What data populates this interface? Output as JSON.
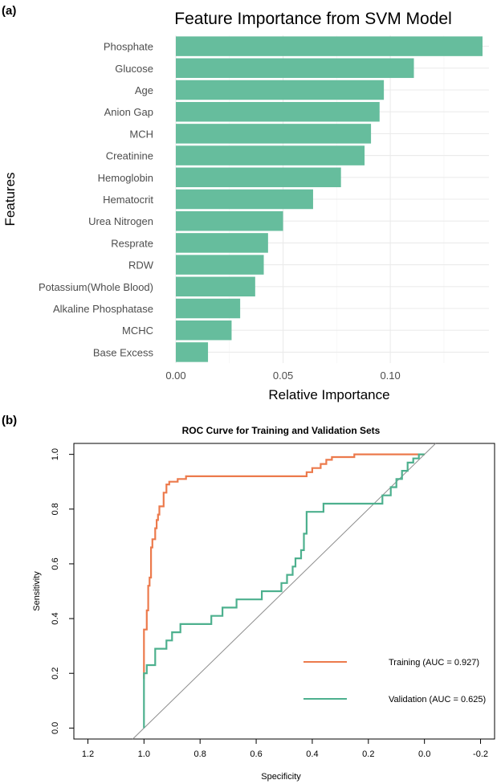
{
  "panels": {
    "a": "(a)",
    "b": "(b)"
  },
  "chart_data": [
    {
      "type": "bar",
      "orientation": "horizontal",
      "title": "Feature Importance from SVM Model",
      "xlabel": "Relative Importance",
      "ylabel": "Features",
      "categories": [
        "Phosphate",
        "Glucose",
        "Age",
        "Anion Gap",
        "MCH",
        "Creatinine",
        "Hemoglobin",
        "Hematocrit",
        "Urea Nitrogen",
        "Resprate",
        "RDW",
        "Potassium(Whole Blood)",
        "Alkaline Phosphatase",
        "MCHC",
        "Base Excess"
      ],
      "values": [
        0.143,
        0.111,
        0.097,
        0.095,
        0.091,
        0.088,
        0.077,
        0.064,
        0.05,
        0.043,
        0.041,
        0.037,
        0.03,
        0.026,
        0.015
      ],
      "xlim": [
        0,
        0.146
      ],
      "xticks": [
        0,
        0.05,
        0.1
      ],
      "xtick_labels": [
        "0.00",
        "0.05",
        "0.10"
      ],
      "bar_color": "#66bd9d",
      "grid": true
    },
    {
      "type": "line",
      "title": "ROC Curve for Training and Validation Sets",
      "xlabel": "Specificity",
      "ylabel": "Sensitivity",
      "xlim": [
        1.25,
        -0.25
      ],
      "ylim": [
        -0.04,
        1.04
      ],
      "xticks": [
        1.2,
        1.0,
        0.8,
        0.6,
        0.4,
        0.2,
        0.0,
        -0.2
      ],
      "xtick_labels": [
        "1.2",
        "1.0",
        "0.8",
        "0.6",
        "0.4",
        "0.2",
        "0.0",
        "-0.2"
      ],
      "yticks": [
        0.0,
        0.2,
        0.4,
        0.6,
        0.8,
        1.0
      ],
      "ytick_labels": [
        "0.0",
        "0.2",
        "0.4",
        "0.6",
        "0.8",
        "1.0"
      ],
      "legend_position": "bottom-right",
      "series": [
        {
          "name": "Training (AUC = 0.927)",
          "color": "#ec7a4c",
          "x": [
            1.0,
            1.0,
            0.99,
            0.99,
            0.985,
            0.985,
            0.98,
            0.98,
            0.975,
            0.975,
            0.97,
            0.97,
            0.96,
            0.96,
            0.955,
            0.955,
            0.95,
            0.95,
            0.945,
            0.945,
            0.93,
            0.93,
            0.92,
            0.92,
            0.91,
            0.91,
            0.88,
            0.88,
            0.85,
            0.85,
            0.42,
            0.42,
            0.4,
            0.4,
            0.37,
            0.37,
            0.35,
            0.35,
            0.33,
            0.33,
            0.25,
            0.25,
            0.0
          ],
          "y": [
            0.18,
            0.36,
            0.36,
            0.43,
            0.43,
            0.52,
            0.52,
            0.55,
            0.55,
            0.66,
            0.66,
            0.69,
            0.69,
            0.73,
            0.73,
            0.76,
            0.76,
            0.78,
            0.78,
            0.81,
            0.81,
            0.86,
            0.86,
            0.89,
            0.89,
            0.9,
            0.9,
            0.91,
            0.91,
            0.92,
            0.92,
            0.935,
            0.935,
            0.95,
            0.95,
            0.965,
            0.965,
            0.98,
            0.98,
            0.99,
            0.99,
            1.0,
            1.0
          ]
        },
        {
          "name": "Validation (AUC = 0.625)",
          "color": "#4db08e",
          "x": [
            1.0,
            1.0,
            0.99,
            0.99,
            0.96,
            0.96,
            0.92,
            0.92,
            0.9,
            0.9,
            0.87,
            0.87,
            0.83,
            0.83,
            0.76,
            0.76,
            0.72,
            0.72,
            0.7,
            0.7,
            0.67,
            0.67,
            0.58,
            0.58,
            0.51,
            0.51,
            0.49,
            0.49,
            0.47,
            0.47,
            0.46,
            0.46,
            0.44,
            0.44,
            0.43,
            0.43,
            0.42,
            0.42,
            0.36,
            0.36,
            0.15,
            0.15,
            0.12,
            0.12,
            0.1,
            0.1,
            0.08,
            0.08,
            0.06,
            0.06,
            0.04,
            0.04,
            0.02,
            0.02,
            0.0,
            0.0
          ],
          "y": [
            0.0,
            0.2,
            0.2,
            0.23,
            0.23,
            0.29,
            0.29,
            0.32,
            0.32,
            0.35,
            0.35,
            0.38,
            0.38,
            0.38,
            0.38,
            0.41,
            0.41,
            0.44,
            0.44,
            0.44,
            0.44,
            0.47,
            0.47,
            0.5,
            0.5,
            0.53,
            0.53,
            0.56,
            0.56,
            0.59,
            0.59,
            0.62,
            0.62,
            0.65,
            0.65,
            0.71,
            0.71,
            0.79,
            0.79,
            0.82,
            0.82,
            0.85,
            0.85,
            0.88,
            0.88,
            0.91,
            0.91,
            0.94,
            0.94,
            0.97,
            0.97,
            0.985,
            0.985,
            1.0,
            1.0,
            1.0
          ]
        }
      ],
      "reference_line": {
        "x": [
          1.0,
          0.0
        ],
        "y": [
          0.0,
          1.0
        ],
        "color": "#8c8c8c"
      }
    }
  ]
}
